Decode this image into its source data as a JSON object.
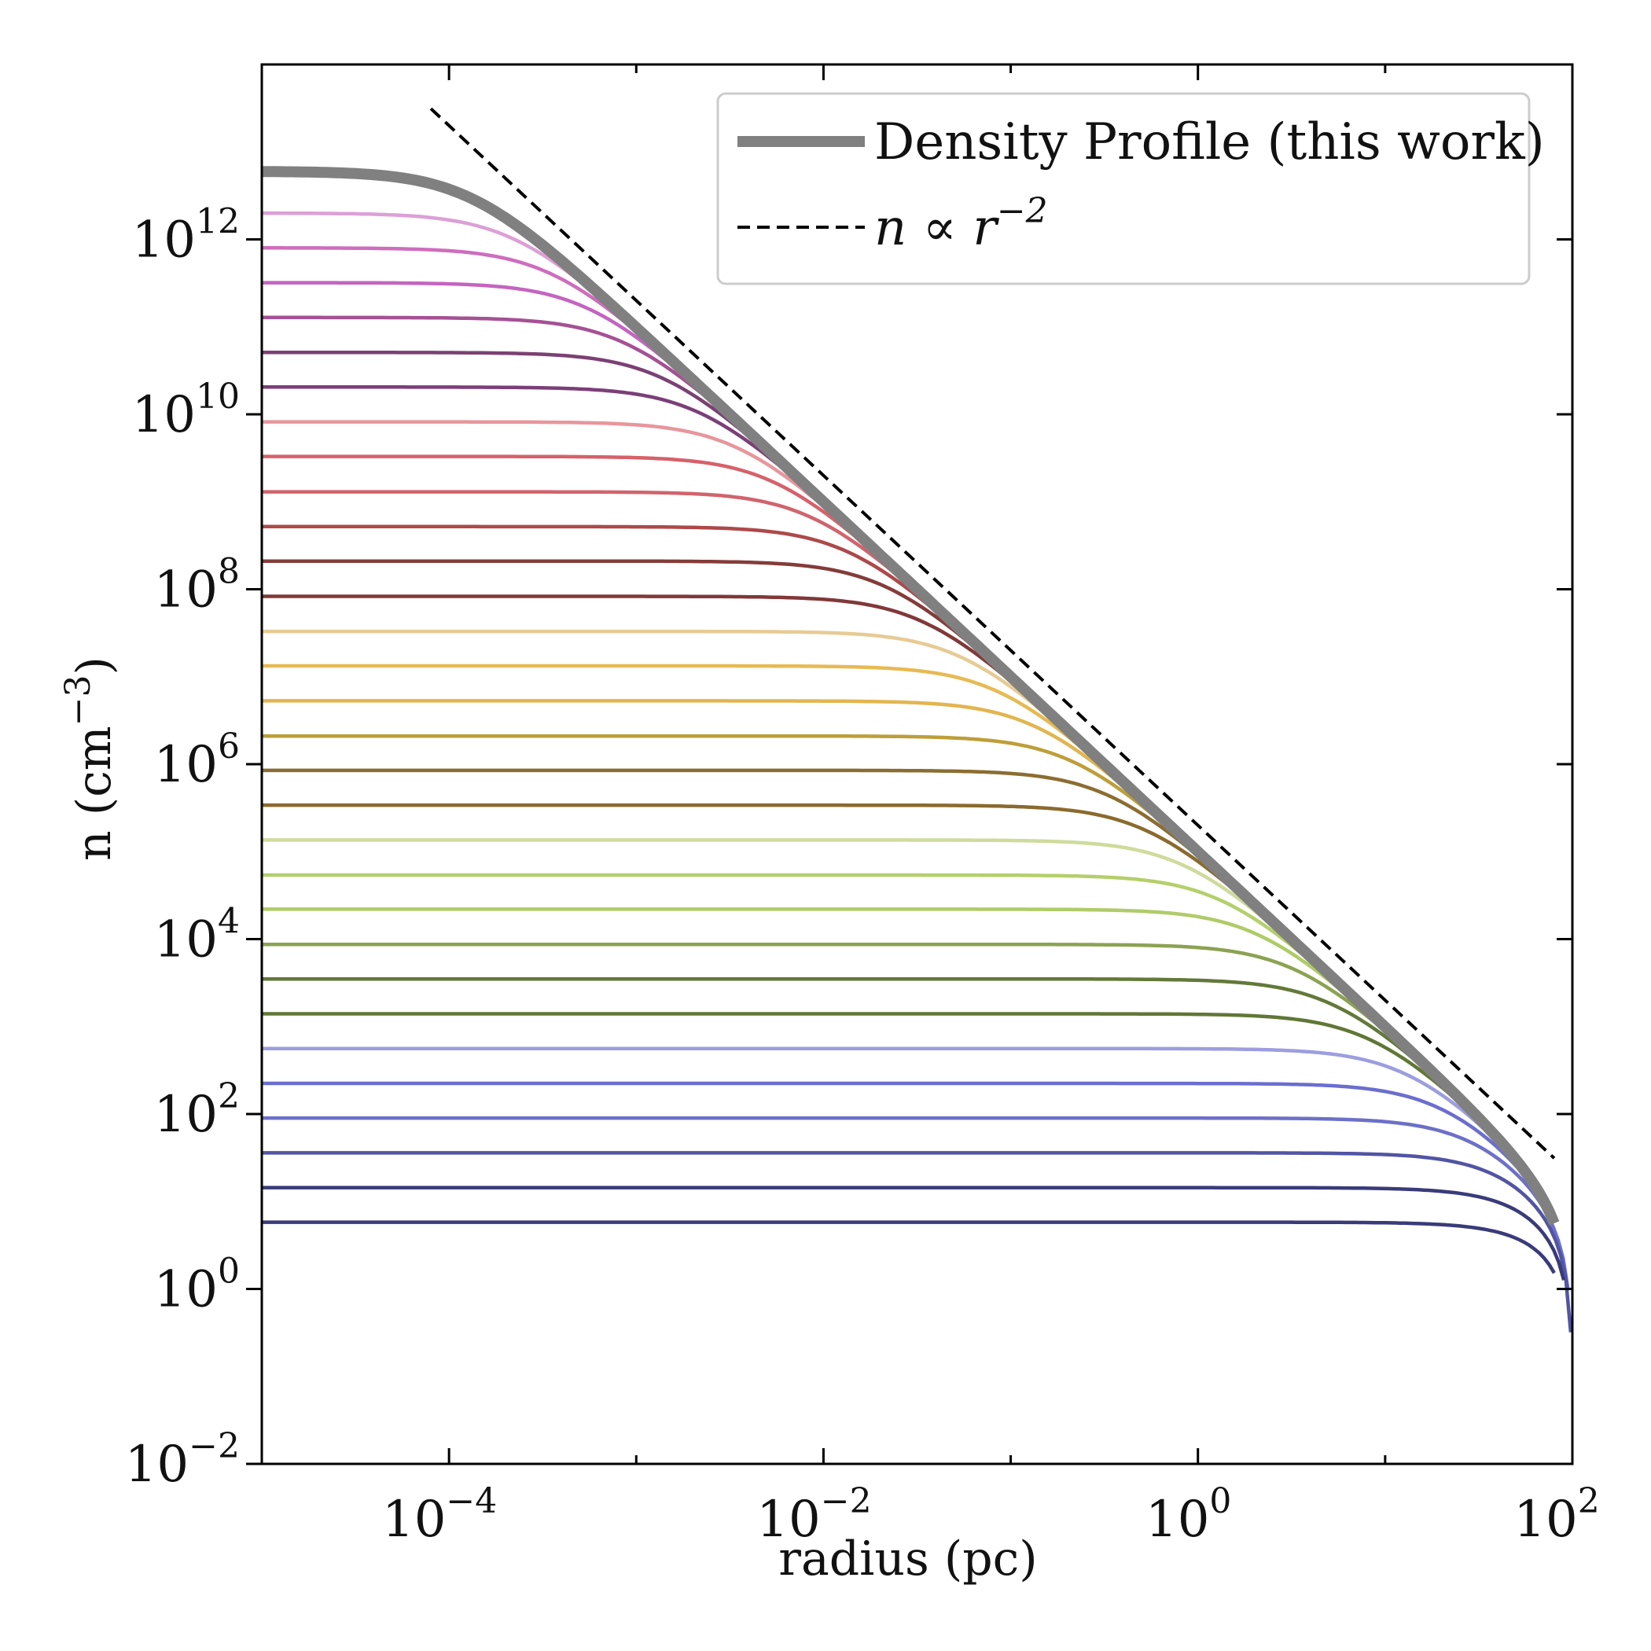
{
  "chart_data": {
    "type": "line",
    "xscale": "log",
    "yscale": "log",
    "xlabel": "radius (pc)",
    "ylabel": "n (cm",
    "ylabel_sup": "−3",
    "ylabel_close": ")",
    "xlim": [
      1e-05,
      100
    ],
    "ylim": [
      0.01,
      100000000000000.0
    ],
    "x_ticks": [
      {
        "value": 0.0001,
        "base": "10",
        "exp": "−4"
      },
      {
        "value": 0.01,
        "base": "10",
        "exp": "−2"
      },
      {
        "value": 1,
        "base": "10",
        "exp": "0"
      },
      {
        "value": 100,
        "base": "10",
        "exp": "2"
      }
    ],
    "y_ticks": [
      {
        "value": 0.01,
        "base": "10",
        "exp": "−2"
      },
      {
        "value": 1,
        "base": "10",
        "exp": "0"
      },
      {
        "value": 100,
        "base": "10",
        "exp": "2"
      },
      {
        "value": 10000,
        "base": "10",
        "exp": "4"
      },
      {
        "value": 1000000,
        "base": "10",
        "exp": "6"
      },
      {
        "value": 100000000,
        "base": "10",
        "exp": "8"
      },
      {
        "value": 10000000000,
        "base": "10",
        "exp": "10"
      },
      {
        "value": 1000000000000,
        "base": "10",
        "exp": "12"
      }
    ],
    "legend": {
      "position": "top-right",
      "entries": [
        {
          "label": "Density Profile (this work)",
          "style": "thick-solid",
          "color": "#808080"
        },
        {
          "label": "n ∝ r",
          "label_sup": "−2",
          "style": "dashed",
          "color": "#000000"
        }
      ]
    },
    "reference_line": {
      "name": "n ∝ r^-2",
      "slope": -2,
      "anchor_r": 1,
      "anchor_n": 200000,
      "r_range": [
        8e-05,
        80
      ],
      "color": "#000000",
      "style": "dashed"
    },
    "density_profile": {
      "name": "Density Profile (this work)",
      "n_center": 6000000000000.0,
      "k": 100000,
      "r_end": 80,
      "color": "#808080"
    },
    "profile_family": {
      "k": 100000,
      "r_outer": 100,
      "curves": [
        {
          "n0": 2000000000000.0,
          "color": "#dca0d6",
          "r_end": 60
        },
        {
          "n0": 800000000000.0,
          "color": "#ce6dbd",
          "r_end": 60
        },
        {
          "n0": 320000000000.0,
          "color": "#c464c0",
          "r_end": 60
        },
        {
          "n0": 128000000000.0,
          "color": "#a55194",
          "r_end": 60
        },
        {
          "n0": 51000000000.0,
          "color": "#7b4173",
          "r_end": 60
        },
        {
          "n0": 20500000000.0,
          "color": "#7b3f78",
          "r_end": 60
        },
        {
          "n0": 8200000000.0,
          "color": "#e7969c",
          "r_end": 60
        },
        {
          "n0": 3300000000.0,
          "color": "#d6616b",
          "r_end": 60
        },
        {
          "n0": 1300000000.0,
          "color": "#d0646d",
          "r_end": 60
        },
        {
          "n0": 520000000.0,
          "color": "#ad494a",
          "r_end": 60
        },
        {
          "n0": 210000000.0,
          "color": "#843c39",
          "r_end": 60
        },
        {
          "n0": 83000000.0,
          "color": "#813838",
          "r_end": 60
        },
        {
          "n0": 33000000.0,
          "color": "#e7cb94",
          "r_end": 60
        },
        {
          "n0": 13300000.0,
          "color": "#e7ba52",
          "r_end": 60
        },
        {
          "n0": 5300000.0,
          "color": "#e2b54f",
          "r_end": 60
        },
        {
          "n0": 2100000.0,
          "color": "#bd9e39",
          "r_end": 60
        },
        {
          "n0": 850000.0,
          "color": "#8c6d31",
          "r_end": 60
        },
        {
          "n0": 340000.0,
          "color": "#8a6a2e",
          "r_end": 60
        },
        {
          "n0": 136000.0,
          "color": "#cedb9c",
          "r_end": 60
        },
        {
          "n0": 54000.0,
          "color": "#b5cf6b",
          "r_end": 60
        },
        {
          "n0": 22000.0,
          "color": "#b0cb68",
          "r_end": 60
        },
        {
          "n0": 8700.0,
          "color": "#8ca252",
          "r_end": 60
        },
        {
          "n0": 3500.0,
          "color": "#637939",
          "r_end": 60
        },
        {
          "n0": 1400.0,
          "color": "#617736",
          "r_end": 60
        },
        {
          "n0": 560,
          "color": "#9c9ede",
          "r_end": 60
        },
        {
          "n0": 224,
          "color": "#6b6ecf",
          "r_end": 60
        },
        {
          "n0": 90,
          "color": "#6d70c8",
          "r_end": 95
        },
        {
          "n0": 36,
          "color": "#5254a3",
          "r_end": 98
        },
        {
          "n0": 14.4,
          "color": "#393b79",
          "r_end": 90
        },
        {
          "n0": 5.8,
          "color": "#393b79",
          "r_end": 80
        }
      ]
    }
  }
}
